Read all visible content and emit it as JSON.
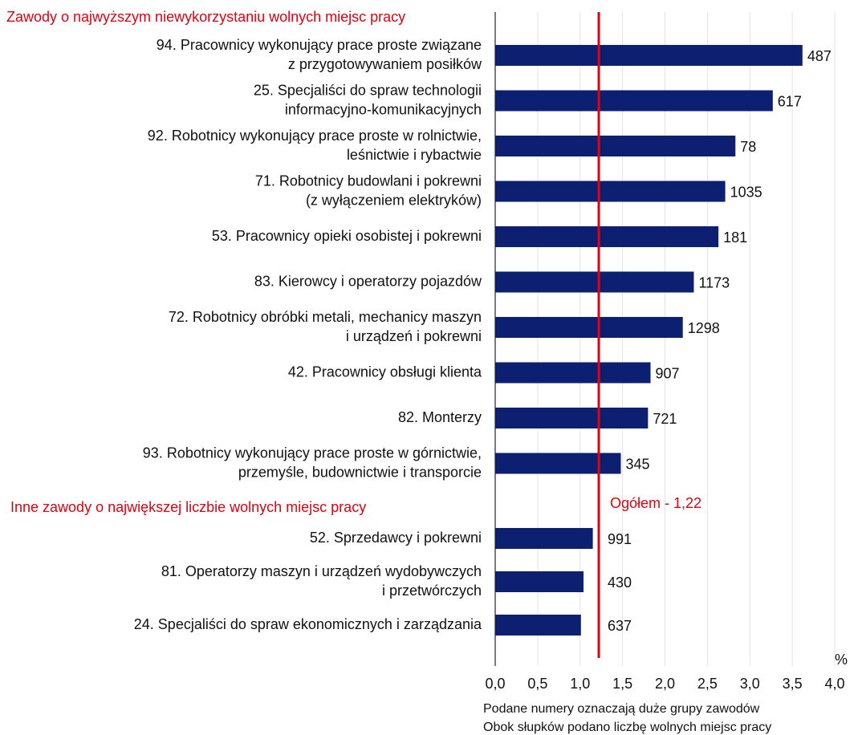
{
  "chart_data": {
    "type": "bar",
    "orientation": "horizontal",
    "color": "#0d1f70",
    "groups": [
      {
        "title": "Zawody o najwyższym niewykorzystaniu wolnych miejsc pracy",
        "categories": [
          [
            "94. Pracownicy wykonujący prace proste związane",
            "z przygotowywaniem posiłków"
          ],
          [
            "25. Specjaliści do spraw technologii",
            "informacyjno-komunikacyjnych"
          ],
          [
            "92. Robotnicy wykonujący prace proste w rolnictwie,",
            "leśnictwie i rybactwie"
          ],
          [
            "71. Robotnicy budowlani i pokrewni",
            "(z wyłączeniem elektryków)"
          ],
          [
            "53. Pracownicy opieki osobistej i pokrewni"
          ],
          [
            "83. Kierowcy i operatorzy pojazdów"
          ],
          [
            "72. Robotnicy obróbki metali, mechanicy maszyn",
            "i urządzeń i pokrewni"
          ],
          [
            "42. Pracownicy obsługi klienta"
          ],
          [
            "82. Monterzy"
          ],
          [
            "93. Robotnicy wykonujący prace proste w górnictwie,",
            "przemyśle, budownictwie i transporcie"
          ]
        ],
        "values": [
          3.62,
          3.27,
          2.83,
          2.71,
          2.63,
          2.34,
          2.21,
          1.83,
          1.8,
          1.48
        ],
        "vacancies": [
          487,
          617,
          78,
          1035,
          181,
          1173,
          1298,
          907,
          721,
          345
        ]
      },
      {
        "title": "Inne zawody o największej liczbie wolnych miejsc pracy",
        "categories": [
          [
            "52. Sprzedawcy i pokrewni"
          ],
          [
            "81. Operatorzy maszyn i urządzeń wydobywczych",
            "i przetwórczych"
          ],
          [
            "24. Specjaliści do spraw ekonomicznych i zarządzania"
          ]
        ],
        "values": [
          1.15,
          1.04,
          1.01
        ],
        "vacancies": [
          991,
          430,
          637
        ]
      }
    ],
    "reference": {
      "value": 1.22,
      "label": "Ogółem - 1,22",
      "color": "#e3000f"
    },
    "xlabel": "%",
    "xlim": [
      0,
      4
    ],
    "xticks": [
      {
        "value": 0,
        "label": "0,0"
      },
      {
        "value": 0.5,
        "label": "0,5"
      },
      {
        "value": 1,
        "label": "1,0"
      },
      {
        "value": 1.5,
        "label": "1,5"
      },
      {
        "value": 2,
        "label": "2,0"
      },
      {
        "value": 2.5,
        "label": "2,5"
      },
      {
        "value": 3,
        "label": "3,0"
      },
      {
        "value": 3.5,
        "label": "3,5"
      },
      {
        "value": 4,
        "label": "4,0"
      }
    ],
    "grid": true,
    "notes": [
      "Podane numery oznaczają duże grupy zawodów",
      "Obok słupków podano liczbę wolnych miejsc pracy"
    ]
  }
}
